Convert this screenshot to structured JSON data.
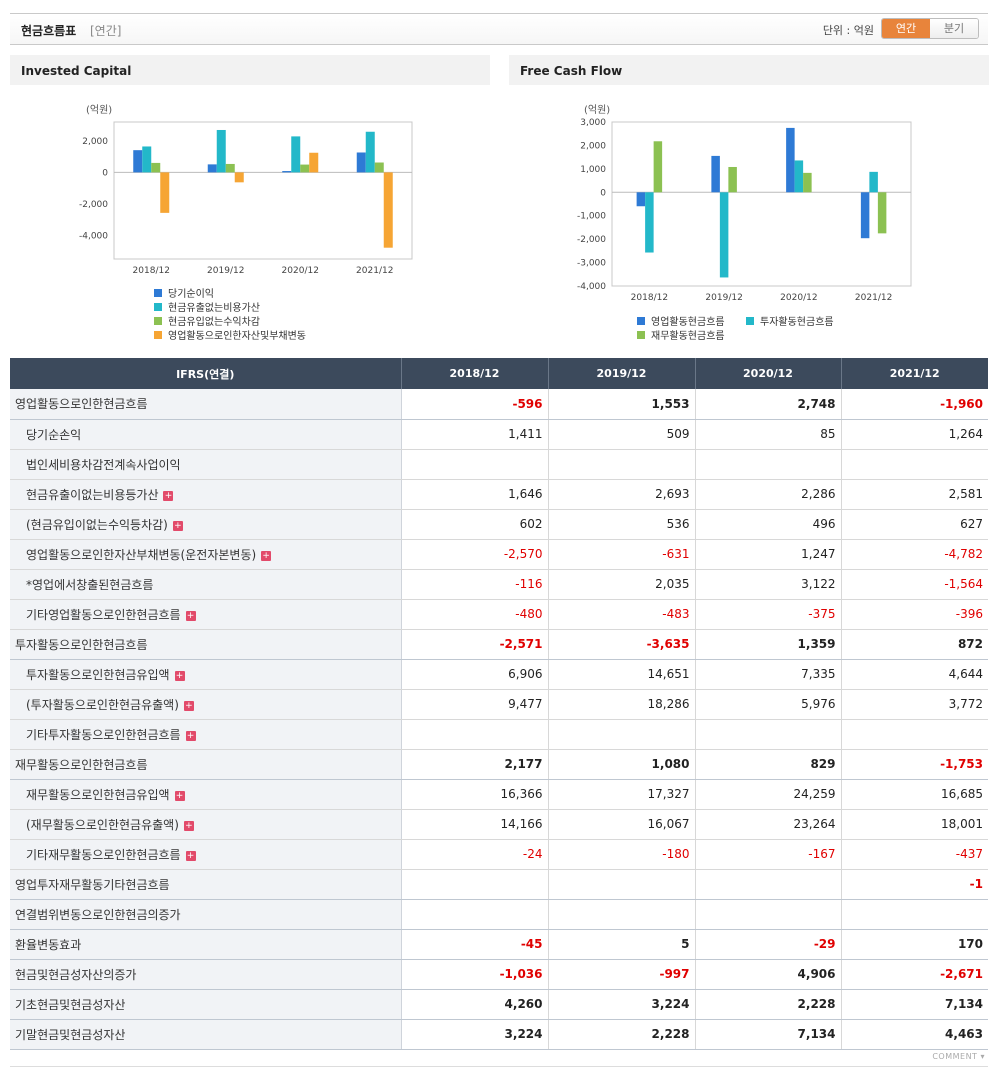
{
  "header": {
    "title": "현금흐름표",
    "period_label": "[연간]",
    "unit_label": "단위 : 억원",
    "toggle": [
      "연간",
      "분기"
    ]
  },
  "charts": [
    {
      "heading": "Invested Capital",
      "chart_data": {
        "type": "bar",
        "ylabel": "(억원)",
        "categories": [
          "2018/12",
          "2019/12",
          "2020/12",
          "2021/12"
        ],
        "ylim": [
          -5500,
          3200
        ],
        "yticks": [
          2000,
          0,
          -2000,
          -4000
        ],
        "yticklabels": [
          "2,000",
          "0",
          "-2,000",
          "-4,000"
        ],
        "series": [
          {
            "name": "당기순이익",
            "color": "#2e7ad5",
            "values": [
              1411,
              509,
              85,
              1264
            ]
          },
          {
            "name": "현금유출없는비용가산",
            "color": "#23b8c9",
            "values": [
              1646,
              2693,
              2286,
              2581
            ]
          },
          {
            "name": "현금유입없는수익차감",
            "color": "#8cc152",
            "values": [
              602,
              536,
              496,
              627
            ]
          },
          {
            "name": "영업활동으로인한자산및부채변동",
            "color": "#f6a534",
            "values": [
              -2570,
              -631,
              1247,
              -4782
            ]
          }
        ],
        "legend": "bottom",
        "grid": false
      }
    },
    {
      "heading": "Free Cash Flow",
      "chart_data": {
        "type": "bar",
        "ylabel": "(억원)",
        "categories": [
          "2018/12",
          "2019/12",
          "2020/12",
          "2021/12"
        ],
        "ylim": [
          -4000,
          3000
        ],
        "yticks": [
          3000,
          2000,
          1000,
          0,
          -1000,
          -2000,
          -3000,
          -4000
        ],
        "yticklabels": [
          "3,000",
          "2,000",
          "1,000",
          "0",
          "-1,000",
          "-2,000",
          "-3,000",
          "-4,000"
        ],
        "series": [
          {
            "name": "영업활동현금흐름",
            "color": "#2e7ad5",
            "values": [
              -596,
              1553,
              2748,
              -1960
            ]
          },
          {
            "name": "투자활동현금흐름",
            "color": "#23b8c9",
            "values": [
              -2571,
              -3635,
              1359,
              872
            ]
          },
          {
            "name": "재무활동현금흐름",
            "color": "#8cc152",
            "values": [
              2177,
              1080,
              829,
              -1753
            ]
          }
        ],
        "legend": "bottom",
        "grid": false
      }
    }
  ],
  "table": {
    "header": [
      "IFRS(연결)",
      "2018/12",
      "2019/12",
      "2020/12",
      "2021/12"
    ],
    "rows": [
      {
        "label": "영업활동으로인한현금흐름",
        "level": 1,
        "plus": false,
        "values": [
          "-596",
          "1,553",
          "2,748",
          "-1,960"
        ]
      },
      {
        "label": "당기순손익",
        "level": 2,
        "plus": false,
        "values": [
          "1,411",
          "509",
          "85",
          "1,264"
        ]
      },
      {
        "label": "법인세비용차감전계속사업이익",
        "level": 2,
        "plus": false,
        "values": [
          "",
          "",
          "",
          ""
        ]
      },
      {
        "label": "현금유출이없는비용등가산",
        "level": 2,
        "plus": true,
        "values": [
          "1,646",
          "2,693",
          "2,286",
          "2,581"
        ]
      },
      {
        "label": "(현금유입이없는수익등차감)",
        "level": 2,
        "plus": true,
        "values": [
          "602",
          "536",
          "496",
          "627"
        ]
      },
      {
        "label": "영업활동으로인한자산부채변동(운전자본변동)",
        "level": 2,
        "plus": true,
        "values": [
          "-2,570",
          "-631",
          "1,247",
          "-4,782"
        ]
      },
      {
        "label": "*영업에서창출된현금흐름",
        "level": 2,
        "plus": false,
        "values": [
          "-116",
          "2,035",
          "3,122",
          "-1,564"
        ]
      },
      {
        "label": "기타영업활동으로인한현금흐름",
        "level": 2,
        "plus": true,
        "values": [
          "-480",
          "-483",
          "-375",
          "-396"
        ]
      },
      {
        "label": "투자활동으로인한현금흐름",
        "level": 1,
        "plus": false,
        "values": [
          "-2,571",
          "-3,635",
          "1,359",
          "872"
        ]
      },
      {
        "label": "투자활동으로인한현금유입액",
        "level": 2,
        "plus": true,
        "values": [
          "6,906",
          "14,651",
          "7,335",
          "4,644"
        ]
      },
      {
        "label": "(투자활동으로인한현금유출액)",
        "level": 2,
        "plus": true,
        "values": [
          "9,477",
          "18,286",
          "5,976",
          "3,772"
        ]
      },
      {
        "label": "기타투자활동으로인한현금흐름",
        "level": 2,
        "plus": true,
        "values": [
          "",
          "",
          "",
          ""
        ]
      },
      {
        "label": "재무활동으로인한현금흐름",
        "level": 1,
        "plus": false,
        "values": [
          "2,177",
          "1,080",
          "829",
          "-1,753"
        ]
      },
      {
        "label": "재무활동으로인한현금유입액",
        "level": 2,
        "plus": true,
        "values": [
          "16,366",
          "17,327",
          "24,259",
          "16,685"
        ]
      },
      {
        "label": "(재무활동으로인한현금유출액)",
        "level": 2,
        "plus": true,
        "values": [
          "14,166",
          "16,067",
          "23,264",
          "18,001"
        ]
      },
      {
        "label": "기타재무활동으로인한현금흐름",
        "level": 2,
        "plus": true,
        "values": [
          "-24",
          "-180",
          "-167",
          "-437"
        ]
      },
      {
        "label": "영업투자재무활동기타현금흐름",
        "level": 1,
        "plus": false,
        "values": [
          "",
          "",
          "",
          "-1"
        ]
      },
      {
        "label": "연결범위변동으로인한현금의증가",
        "level": 1,
        "plus": false,
        "values": [
          "",
          "",
          "",
          ""
        ]
      },
      {
        "label": "환율변동효과",
        "level": 1,
        "plus": false,
        "values": [
          "-45",
          "5",
          "-29",
          "170"
        ]
      },
      {
        "label": "현금및현금성자산의증가",
        "level": 1,
        "plus": false,
        "values": [
          "-1,036",
          "-997",
          "4,906",
          "-2,671"
        ]
      },
      {
        "label": "기초현금및현금성자산",
        "level": 1,
        "plus": false,
        "values": [
          "4,260",
          "3,224",
          "2,228",
          "7,134"
        ]
      },
      {
        "label": "기말현금및현금성자산",
        "level": 1,
        "plus": false,
        "values": [
          "3,224",
          "2,228",
          "7,134",
          "4,463"
        ]
      }
    ]
  },
  "footer": {
    "comment": "COMMENT ▾"
  }
}
